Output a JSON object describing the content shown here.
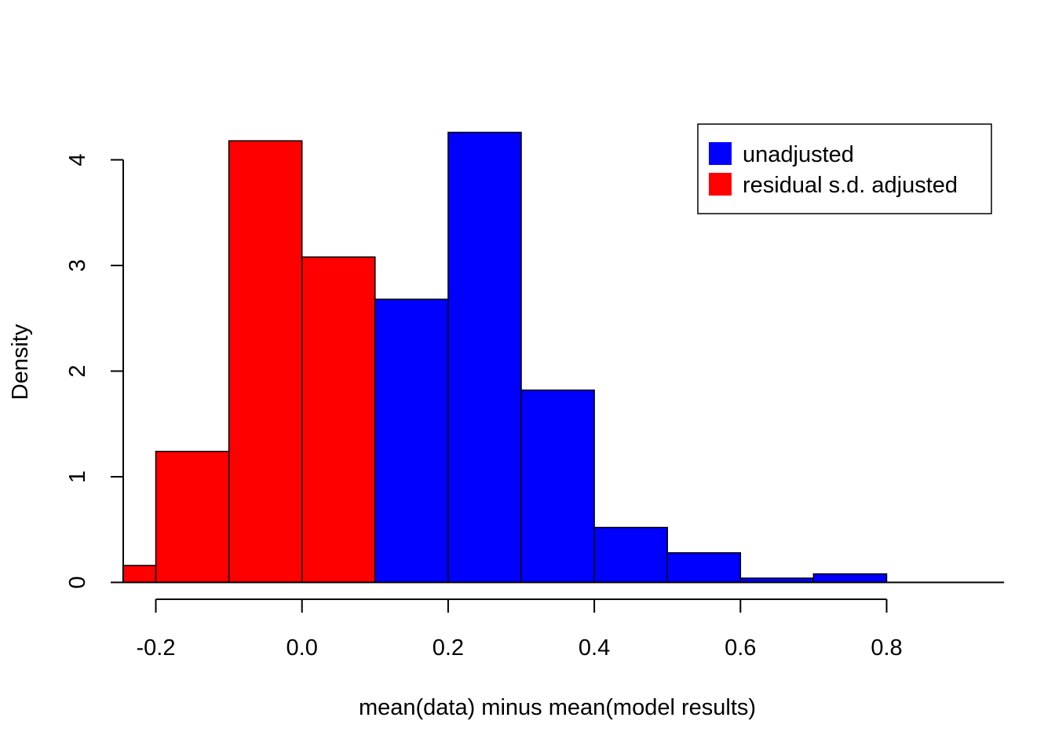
{
  "chart_data": {
    "type": "bar",
    "title": "",
    "xlabel": "mean(data) minus mean(model results)",
    "ylabel": "Density",
    "xlim": [
      -0.245,
      0.95
    ],
    "ylim": [
      0,
      4.3
    ],
    "x_ticks": [
      -0.2,
      0.0,
      0.2,
      0.4,
      0.6,
      0.8
    ],
    "x_tick_labels": [
      "-0.2",
      "0.0",
      "0.2",
      "0.4",
      "0.6",
      "0.8"
    ],
    "y_ticks": [
      0,
      1,
      2,
      3,
      4
    ],
    "y_tick_labels": [
      "0",
      "1",
      "2",
      "3",
      "4"
    ],
    "grid": false,
    "legend_position": "top-right",
    "series": [
      {
        "name": "unadjusted",
        "color": "#0000ff",
        "bins": [
          {
            "x0": -0.2,
            "x1": -0.1,
            "density": 0.02
          },
          {
            "x0": -0.1,
            "x1": 0.0,
            "density": 0.04
          },
          {
            "x0": 0.0,
            "x1": 0.1,
            "density": 0.24
          },
          {
            "x0": 0.1,
            "x1": 0.2,
            "density": 2.68
          },
          {
            "x0": 0.2,
            "x1": 0.3,
            "density": 4.26
          },
          {
            "x0": 0.3,
            "x1": 0.4,
            "density": 1.82
          },
          {
            "x0": 0.4,
            "x1": 0.5,
            "density": 0.52
          },
          {
            "x0": 0.5,
            "x1": 0.6,
            "density": 0.28
          },
          {
            "x0": 0.6,
            "x1": 0.7,
            "density": 0.04
          },
          {
            "x0": 0.7,
            "x1": 0.8,
            "density": 0.08
          },
          {
            "x0": 0.8,
            "x1": 0.9,
            "density": 0.0
          }
        ]
      },
      {
        "name": "residual s.d. adjusted",
        "color": "#ff0000",
        "bins": [
          {
            "x0": -0.245,
            "x1": -0.2,
            "density": 0.16
          },
          {
            "x0": -0.2,
            "x1": -0.1,
            "density": 1.24
          },
          {
            "x0": -0.1,
            "x1": 0.0,
            "density": 4.18
          },
          {
            "x0": 0.0,
            "x1": 0.1,
            "density": 3.08
          }
        ]
      }
    ]
  }
}
